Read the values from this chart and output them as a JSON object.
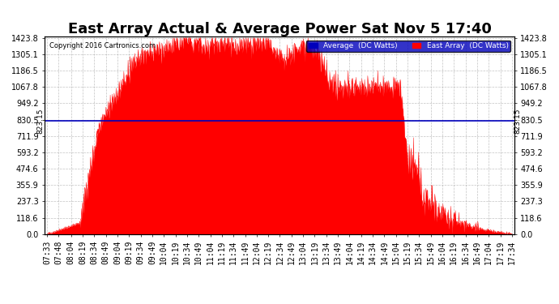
{
  "title": "East Array Actual & Average Power Sat Nov 5 17:40",
  "copyright": "Copyright 2016 Cartronics.com",
  "yticks": [
    0.0,
    118.6,
    237.3,
    355.9,
    474.6,
    593.2,
    711.9,
    830.5,
    949.2,
    1067.8,
    1186.5,
    1305.1,
    1423.8
  ],
  "ymax": 1423.8,
  "ymin": 0.0,
  "avg_line_value": 823.15,
  "avg_line_label": "823.15",
  "fill_color": "#FF0000",
  "line_color": "#FF0000",
  "avg_line_color": "#0000BB",
  "background_color": "#FFFFFF",
  "plot_bg_color": "#FFFFFF",
  "grid_color": "#AAAAAA",
  "legend_avg_color": "#0000BB",
  "legend_east_color": "#FF0000",
  "legend_avg_label": "Average  (DC Watts)",
  "legend_east_label": "East Array  (DC Watts)",
  "title_fontsize": 13,
  "tick_fontsize": 7,
  "x_tick_labels": [
    "07:33",
    "07:48",
    "08:04",
    "08:19",
    "08:34",
    "08:49",
    "09:04",
    "09:19",
    "09:34",
    "09:49",
    "10:04",
    "10:19",
    "10:34",
    "10:49",
    "11:04",
    "11:19",
    "11:34",
    "11:49",
    "12:04",
    "12:19",
    "12:34",
    "12:49",
    "13:04",
    "13:19",
    "13:34",
    "13:49",
    "14:04",
    "14:19",
    "14:34",
    "14:49",
    "15:04",
    "15:19",
    "15:34",
    "15:49",
    "16:04",
    "16:19",
    "16:34",
    "16:49",
    "17:04",
    "17:19",
    "17:34"
  ]
}
